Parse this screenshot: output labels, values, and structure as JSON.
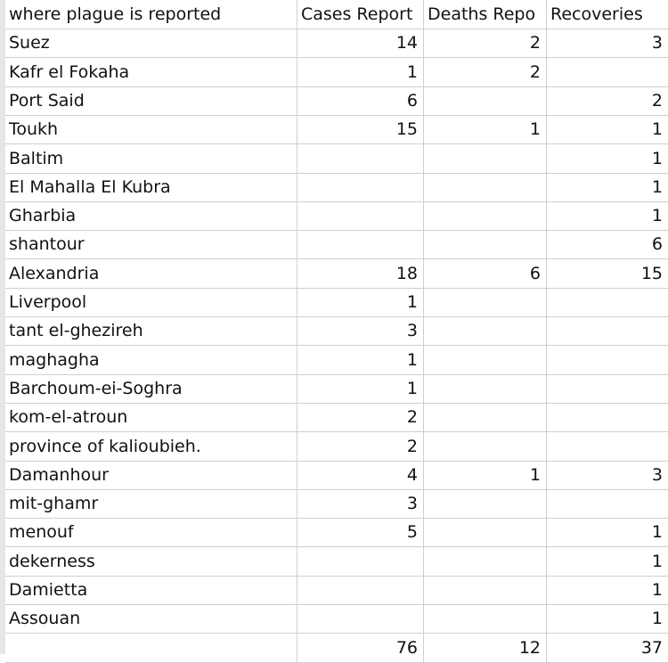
{
  "headers": [
    "where plague is reported",
    "Cases Report",
    "Deaths Repo",
    "Recoveries"
  ],
  "rows": [
    {
      "place": "Suez",
      "cases": "14",
      "deaths": "2",
      "recoveries": "3"
    },
    {
      "place": "Kafr el Fokaha",
      "cases": "1",
      "deaths": "2",
      "recoveries": ""
    },
    {
      "place": "Port Said",
      "cases": "6",
      "deaths": "",
      "recoveries": "2"
    },
    {
      "place": "Toukh",
      "cases": "15",
      "deaths": "1",
      "recoveries": "1"
    },
    {
      "place": "Baltim",
      "cases": "",
      "deaths": "",
      "recoveries": "1"
    },
    {
      "place": "El Mahalla El Kubra",
      "cases": "",
      "deaths": "",
      "recoveries": "1"
    },
    {
      "place": "Gharbia",
      "cases": "",
      "deaths": "",
      "recoveries": "1"
    },
    {
      "place": "shantour",
      "cases": "",
      "deaths": "",
      "recoveries": "6"
    },
    {
      "place": "Alexandria",
      "cases": "18",
      "deaths": "6",
      "recoveries": "15"
    },
    {
      "place": "Liverpool",
      "cases": "1",
      "deaths": "",
      "recoveries": ""
    },
    {
      "place": "tant el-ghezireh",
      "cases": "3",
      "deaths": "",
      "recoveries": ""
    },
    {
      "place": "maghagha",
      "cases": "1",
      "deaths": "",
      "recoveries": ""
    },
    {
      "place": "Barchoum-ei-Soghra",
      "cases": "1",
      "deaths": "",
      "recoveries": ""
    },
    {
      "place": "kom-el-atroun",
      "cases": "2",
      "deaths": "",
      "recoveries": ""
    },
    {
      "place": "province of kalioubieh.",
      "cases": "2",
      "deaths": "",
      "recoveries": ""
    },
    {
      "place": "Damanhour",
      "cases": "4",
      "deaths": "1",
      "recoveries": "3"
    },
    {
      "place": "mit-ghamr",
      "cases": "3",
      "deaths": "",
      "recoveries": ""
    },
    {
      "place": "menouf",
      "cases": "5",
      "deaths": "",
      "recoveries": "1"
    },
    {
      "place": "dekerness",
      "cases": "",
      "deaths": "",
      "recoveries": "1"
    },
    {
      "place": "Damietta",
      "cases": "",
      "deaths": "",
      "recoveries": "1"
    },
    {
      "place": "Assouan",
      "cases": "",
      "deaths": "",
      "recoveries": "1"
    }
  ],
  "totals": {
    "place": "",
    "cases": "76",
    "deaths": "12",
    "recoveries": "37"
  }
}
